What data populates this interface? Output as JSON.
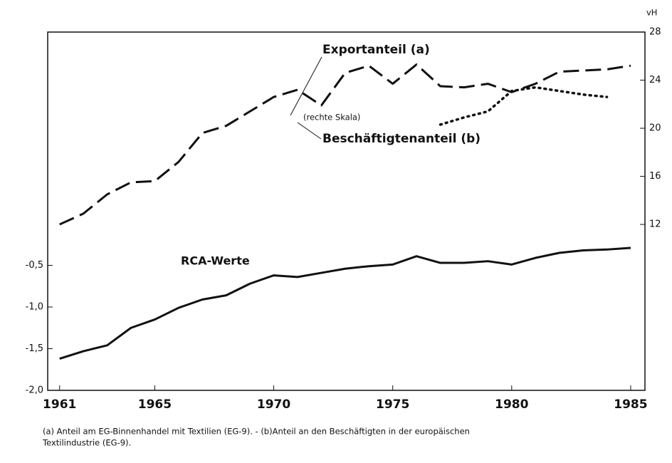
{
  "chart_data": {
    "type": "line",
    "annotations": [
      "Exportanteil (a)",
      "(rechte Skala)",
      "Beschäftigtenanteil (b)",
      "RCA-Werte"
    ],
    "y2_unit": "vH",
    "footnote": [
      "(a) Anteil am EG-Binnenhandel mit Textilien (EG-9). - (b)Anteil an den Beschäftigten in der europäischen",
      "Textilindustrie (EG-9)."
    ],
    "x": [
      1961,
      1962,
      1963,
      1964,
      1965,
      1966,
      1967,
      1968,
      1969,
      1970,
      1971,
      1972,
      1973,
      1974,
      1975,
      1976,
      1977,
      1978,
      1979,
      1980,
      1981,
      1982,
      1983,
      1984,
      1985
    ],
    "xlim": [
      1960.5,
      1985.6
    ],
    "xticks": [
      1961,
      1965,
      1970,
      1975,
      1980,
      1985
    ],
    "ylim": [
      -2.0,
      2.3
    ],
    "yticks": [
      {
        "value": -2.0,
        "label": "-2,0"
      },
      {
        "value": -1.5,
        "label": "-1,5"
      },
      {
        "value": -1.0,
        "label": "-1,0"
      },
      {
        "value": -0.5,
        "label": "-0,5"
      }
    ],
    "y2lim": [
      -1.8,
      28
    ],
    "y2ticks": [
      12,
      16,
      20,
      24,
      28
    ],
    "series": [
      {
        "name": "RCA-Werte",
        "color": "#111",
        "style": "solid",
        "axis": "y",
        "values": [
          -1.62,
          -1.53,
          -1.46,
          -1.25,
          -1.15,
          -1.01,
          -0.91,
          -0.86,
          -0.72,
          -0.62,
          -0.64,
          -0.59,
          -0.54,
          -0.51,
          -0.49,
          -0.39,
          -0.47,
          -0.47,
          -0.45,
          -0.49,
          -0.41,
          -0.35,
          -0.32,
          -0.31,
          -0.29
        ]
      },
      {
        "name": "Exportanteil (a)",
        "color": "#111",
        "style": "dashed",
        "axis": "y2",
        "values": [
          12.0,
          12.9,
          14.5,
          15.5,
          15.6,
          17.2,
          19.6,
          20.2,
          21.4,
          22.6,
          23.2,
          21.9,
          24.6,
          25.2,
          23.7,
          25.3,
          23.5,
          23.4,
          23.7,
          23.0,
          23.7,
          24.7,
          24.8,
          24.9,
          25.2
        ]
      },
      {
        "name": "Beschäftigtenanteil (b)",
        "color": "#111",
        "style": "dotted",
        "axis": "y2",
        "values": [
          null,
          null,
          null,
          null,
          null,
          null,
          null,
          null,
          null,
          null,
          null,
          null,
          null,
          null,
          null,
          null,
          20.3,
          20.9,
          21.4,
          23.1,
          23.4,
          23.1,
          22.8,
          22.6,
          null
        ]
      }
    ]
  }
}
